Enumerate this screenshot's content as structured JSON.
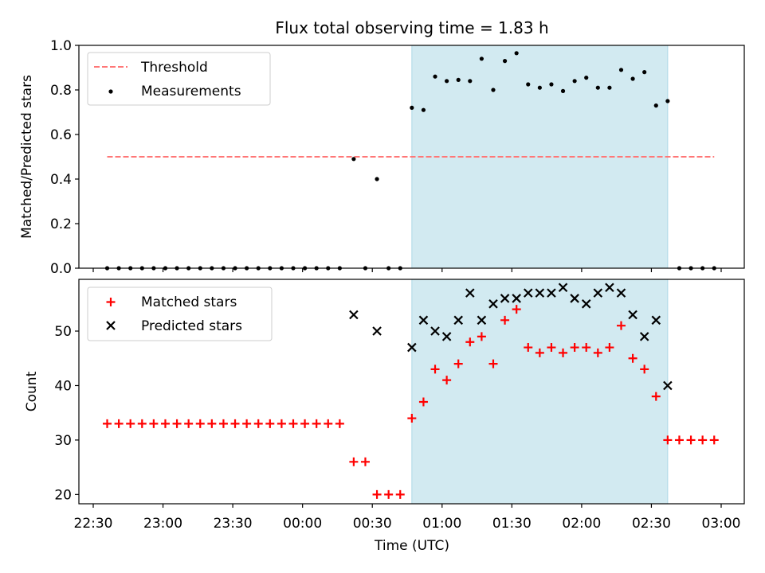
{
  "figure": {
    "title": "Flux total observing time = 1.83 h",
    "xlabel": "Time (UTC)"
  },
  "colors": {
    "threshold": "#ff7777",
    "measurements": "#000000",
    "matched": "#ff0000",
    "predicted": "#000000",
    "observing_window": "#add8e6"
  },
  "chart_data": [
    {
      "type": "scatter",
      "panel": "top",
      "ylabel": "Matched/Predicted stars",
      "ylim": [
        0,
        1.0
      ],
      "yticks": [
        0.0,
        0.2,
        0.4,
        0.6,
        0.8,
        1.0
      ],
      "ytick_labels": [
        "0.0",
        "0.2",
        "0.4",
        "0.6",
        "0.8",
        "1.0"
      ],
      "legend_position": "top-left",
      "observing_window": [
        "00:47",
        "02:37"
      ],
      "threshold": {
        "name": "Threshold",
        "value": 0.5,
        "x_range": [
          "22:36",
          "02:57"
        ]
      },
      "series": [
        {
          "name": "Measurements",
          "x": [
            "22:36",
            "22:41",
            "22:46",
            "22:51",
            "22:56",
            "23:01",
            "23:06",
            "23:11",
            "23:16",
            "23:21",
            "23:26",
            "23:31",
            "23:36",
            "23:41",
            "23:46",
            "23:51",
            "23:56",
            "00:01",
            "00:06",
            "00:11",
            "00:16",
            "00:22",
            "00:27",
            "00:32",
            "00:37",
            "00:42",
            "00:47",
            "00:52",
            "00:57",
            "01:02",
            "01:07",
            "01:12",
            "01:17",
            "01:22",
            "01:27",
            "01:32",
            "01:37",
            "01:42",
            "01:47",
            "01:52",
            "01:57",
            "02:02",
            "02:07",
            "02:12",
            "02:17",
            "02:22",
            "02:27",
            "02:32",
            "02:37",
            "02:42",
            "02:47",
            "02:52",
            "02:57"
          ],
          "y": [
            0,
            0,
            0,
            0,
            0,
            0,
            0,
            0,
            0,
            0,
            0,
            0,
            0,
            0,
            0,
            0,
            0,
            0,
            0,
            0,
            0,
            0.49,
            0,
            0.4,
            0,
            0,
            0.72,
            0.71,
            0.86,
            0.84,
            0.845,
            0.84,
            0.94,
            0.8,
            0.93,
            0.965,
            0.825,
            0.81,
            0.825,
            0.795,
            0.84,
            0.855,
            0.81,
            0.81,
            0.89,
            0.85,
            0.88,
            0.73,
            0.75,
            0,
            0,
            0,
            0
          ]
        }
      ]
    },
    {
      "type": "scatter",
      "panel": "bottom",
      "ylabel": "Count",
      "ylim": [
        18.3,
        59.5
      ],
      "yticks": [
        20,
        30,
        40,
        50
      ],
      "ytick_labels": [
        "20",
        "30",
        "40",
        "50"
      ],
      "xticks": [
        "22:30",
        "23:00",
        "23:30",
        "00:00",
        "00:30",
        "01:00",
        "01:30",
        "02:00",
        "02:30",
        "03:00"
      ],
      "xtick_labels": [
        "22:30",
        "23:00",
        "23:30",
        "00:00",
        "00:30",
        "01:00",
        "01:30",
        "02:00",
        "02:30",
        "03:00"
      ],
      "legend_position": "top-left",
      "observing_window": [
        "00:47",
        "02:37"
      ],
      "series": [
        {
          "name": "Matched stars",
          "marker": "plus",
          "x": [
            "22:36",
            "22:41",
            "22:46",
            "22:51",
            "22:56",
            "23:01",
            "23:06",
            "23:11",
            "23:16",
            "23:21",
            "23:26",
            "23:31",
            "23:36",
            "23:41",
            "23:46",
            "23:51",
            "23:56",
            "00:01",
            "00:06",
            "00:11",
            "00:16",
            "00:22",
            "00:27",
            "00:32",
            "00:37",
            "00:42",
            "00:47",
            "00:52",
            "00:57",
            "01:02",
            "01:07",
            "01:12",
            "01:17",
            "01:22",
            "01:27",
            "01:32",
            "01:37",
            "01:42",
            "01:47",
            "01:52",
            "01:57",
            "02:02",
            "02:07",
            "02:12",
            "02:17",
            "02:22",
            "02:27",
            "02:32",
            "02:37",
            "02:42",
            "02:47",
            "02:52",
            "02:57"
          ],
          "y": [
            33,
            33,
            33,
            33,
            33,
            33,
            33,
            33,
            33,
            33,
            33,
            33,
            33,
            33,
            33,
            33,
            33,
            33,
            33,
            33,
            33,
            26,
            26,
            20,
            20,
            20,
            34,
            37,
            43,
            41,
            44,
            48,
            49,
            44,
            52,
            54,
            47,
            46,
            47,
            46,
            47,
            47,
            46,
            47,
            51,
            45,
            43,
            38,
            30,
            30,
            30,
            30,
            30
          ]
        },
        {
          "name": "Predicted stars",
          "marker": "x",
          "x": [
            "00:22",
            "00:32",
            "00:47",
            "00:52",
            "00:57",
            "01:02",
            "01:07",
            "01:12",
            "01:17",
            "01:22",
            "01:27",
            "01:32",
            "01:37",
            "01:42",
            "01:47",
            "01:52",
            "01:57",
            "02:02",
            "02:07",
            "02:12",
            "02:17",
            "02:22",
            "02:27",
            "02:32",
            "02:37"
          ],
          "y": [
            53,
            50,
            47,
            52,
            50,
            49,
            52,
            57,
            52,
            55,
            56,
            56,
            57,
            57,
            57,
            58,
            56,
            55,
            57,
            58,
            57,
            53,
            49,
            52,
            40
          ]
        }
      ]
    }
  ]
}
